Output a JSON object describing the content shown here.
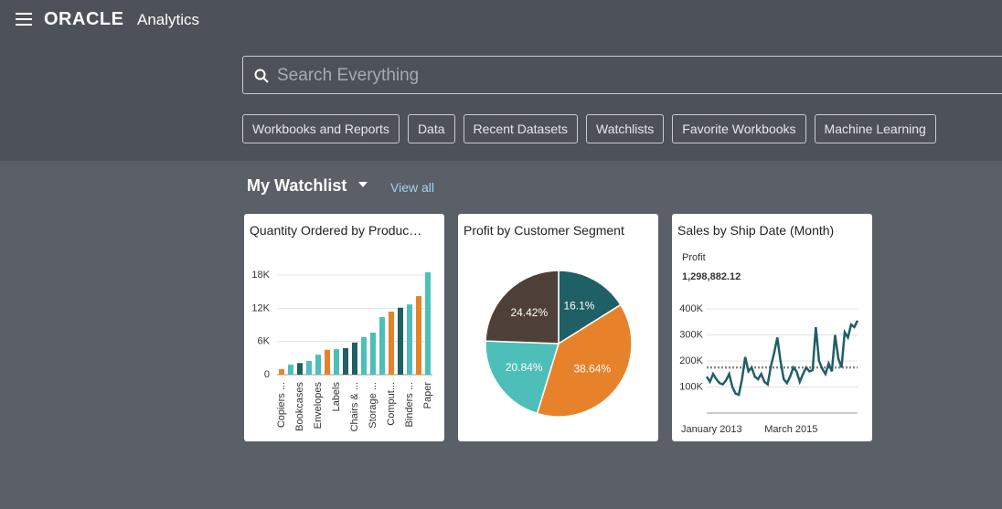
{
  "header": {
    "brand": "ORACLE",
    "product": "Analytics"
  },
  "search": {
    "placeholder": "Search Everything"
  },
  "filters": [
    "Workbooks and Reports",
    "Data",
    "Recent Datasets",
    "Watchlists",
    "Favorite Workbooks",
    "Machine Learning"
  ],
  "watchlist": {
    "title": "My Watchlist",
    "link": "View all"
  },
  "cards": [
    {
      "title": "Quantity Ordered by Produc…",
      "chart_data": {
        "type": "bar",
        "categories": [
          "Copiers ...",
          null,
          "Bookcases",
          null,
          "Envelopes",
          null,
          "Labels",
          null,
          "Chairs & ...",
          null,
          "Storage ...",
          null,
          "Comput...",
          null,
          "Binders ...",
          null,
          "Paper"
        ],
        "values": [
          1000,
          1800,
          2100,
          2500,
          3600,
          4500,
          4600,
          4800,
          5800,
          6800,
          7600,
          10400,
          11400,
          12100,
          12700,
          14200,
          18500
        ],
        "colors": [
          "#e8822a",
          "#4dbfb8",
          "#1f5f66",
          "#4dbfb8",
          "#4dbfb8",
          "#e8822a",
          "#4dbfb8",
          "#1f5f66",
          "#1f5f66",
          "#4dbfb8",
          "#4dbfb8",
          "#4dbfb8",
          "#e8822a",
          "#1f5f66",
          "#4dbfb8",
          "#e8822a",
          "#4dbfb8"
        ],
        "ylim": [
          0,
          19000
        ],
        "yticks": [
          0,
          {
            "value": 6000,
            "label": "6K"
          },
          {
            "value": 12000,
            "label": "12K"
          },
          {
            "value": 18000,
            "label": "18K"
          }
        ],
        "grid": true
      }
    },
    {
      "title": "Profit by Customer Segment",
      "chart_data": {
        "type": "pie",
        "values": [
          16.1,
          38.64,
          20.84,
          24.42
        ],
        "value_labels": [
          "16.1%",
          "38.64%",
          "20.84%",
          "24.42%"
        ],
        "colors": [
          "#1f5f66",
          "#e8822a",
          "#4dbfb8",
          "#4e4038"
        ]
      }
    },
    {
      "title": "Sales by Ship Date (Month)",
      "chart_data": {
        "type": "line",
        "metric_label": "Profit",
        "metric_value": "1,298,882.12",
        "categories": [
          "January 2013",
          null,
          null,
          null,
          null,
          null,
          null,
          null,
          null,
          null,
          null,
          null,
          null,
          null,
          null,
          null,
          null,
          null,
          null,
          null,
          null,
          null,
          null,
          null,
          null,
          null,
          "March 2015",
          null,
          null,
          null,
          null,
          null,
          null,
          null,
          null,
          null,
          null,
          null,
          null,
          null,
          null,
          null,
          null,
          null,
          null,
          null,
          null,
          null
        ],
        "values": [
          140000,
          120000,
          150000,
          130000,
          115000,
          110000,
          125000,
          150000,
          100000,
          75000,
          70000,
          130000,
          215000,
          160000,
          175000,
          140000,
          130000,
          150000,
          120000,
          110000,
          180000,
          230000,
          290000,
          200000,
          130000,
          115000,
          140000,
          175000,
          160000,
          120000,
          150000,
          175000,
          160000,
          165000,
          330000,
          200000,
          170000,
          150000,
          190000,
          160000,
          300000,
          210000,
          175000,
          310000,
          290000,
          340000,
          330000,
          355000
        ],
        "color": "#1f5f66",
        "reference_line": 175000,
        "ylim": [
          0,
          400000
        ],
        "yticks": [
          {
            "value": 100000,
            "label": "100K"
          },
          {
            "value": 200000,
            "label": "200K"
          },
          {
            "value": 300000,
            "label": "300K"
          },
          {
            "value": 400000,
            "label": "400K"
          }
        ],
        "grid": true
      }
    }
  ]
}
